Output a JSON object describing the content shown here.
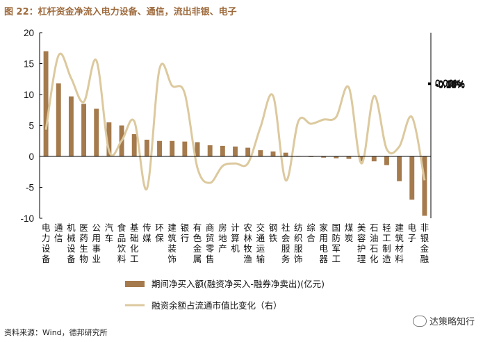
{
  "title": "图 22：杠杆资金净流入电力设备、通信，流出非银、电子",
  "source": "资料来源：Wind，德邦研究所",
  "watermark": "达策略知行",
  "colors": {
    "bar": "#a57a4c",
    "line": "#dcc99e",
    "title": "#9e6a3c",
    "axis": "#000000"
  },
  "chart_data": {
    "type": "bar",
    "categories": [
      "电力设备",
      "通信",
      "机械设备",
      "医药生物",
      "公用事业",
      "汽车",
      "食品饮料",
      "基础化工",
      "传媒",
      "环保",
      "建筑装饰",
      "银行",
      "有色金属",
      "商贸零售",
      "房地产",
      "计算机",
      "农林牧渔",
      "交通运输",
      "钢铁",
      "社会服务",
      "纺织服饰",
      "综合",
      "家用电器",
      "国防军工",
      "煤炭",
      "美容护理",
      "石油石化",
      "轻工制造",
      "建筑材料",
      "电子",
      "非银金融"
    ],
    "series": [
      {
        "name": "期间净买入额(融资净买入-融券净卖出)(亿元)",
        "type": "bar",
        "axis": "left",
        "values": [
          17.0,
          11.8,
          9.7,
          8.5,
          7.7,
          5.5,
          5.0,
          3.6,
          2.7,
          2.5,
          2.5,
          2.4,
          2.3,
          1.8,
          1.7,
          1.6,
          1.4,
          1.0,
          0.8,
          0.6,
          0.0,
          -0.1,
          -0.2,
          -0.3,
          -0.4,
          -0.8,
          -0.8,
          -1.4,
          -4.0,
          -7.0,
          -9.6
        ]
      },
      {
        "name": "融资余额占流通市值比变化（右）",
        "type": "line",
        "axis": "right",
        "values": [
          -0.055,
          0.033,
          0.006,
          -0.022,
          0.027,
          -0.08,
          -0.068,
          -0.045,
          -0.125,
          0.017,
          -0.003,
          -0.012,
          -0.1,
          -0.118,
          -0.098,
          -0.095,
          -0.095,
          -0.052,
          -0.015,
          -0.115,
          -0.045,
          -0.048,
          -0.043,
          -0.04,
          -0.005,
          -0.095,
          -0.015,
          -0.078,
          -0.075,
          -0.04,
          -0.115
        ]
      }
    ],
    "y_left": {
      "min": -10,
      "max": 20,
      "ticks": [
        "-10",
        "-5",
        "0",
        "5",
        "10",
        "15",
        "20"
      ]
    },
    "y_right": {
      "min": -0.16,
      "max": 0.06,
      "ticks": [
        "-0.16%",
        "-0.14%",
        "-0.12%",
        "-0.10%",
        "-0.08%",
        "-0.06%",
        "-0.04%",
        "-0.02%",
        "0.00%",
        "0.02%",
        "0.04%",
        "0.06%"
      ]
    },
    "legend_position": "bottom",
    "grid": false
  }
}
